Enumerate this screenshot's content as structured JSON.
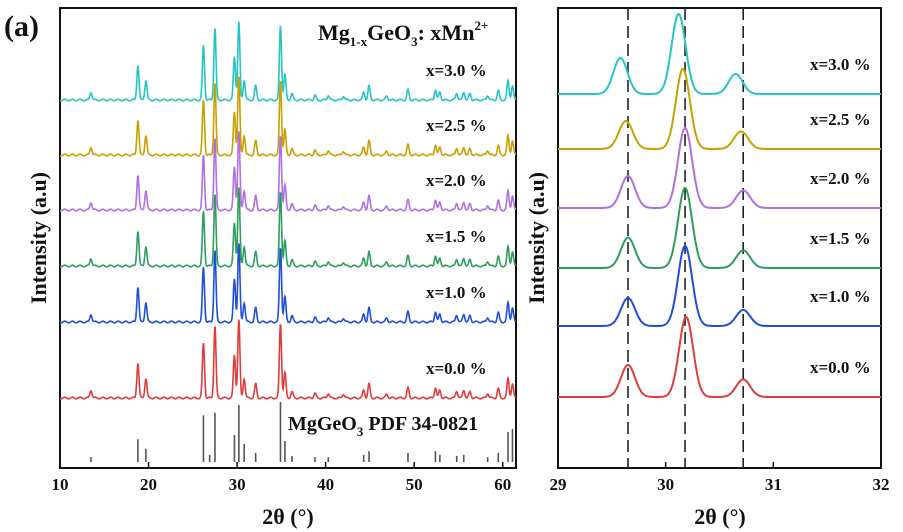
{
  "panel_label": "(a)",
  "chart_data": [
    {
      "type": "line",
      "title_main": "Mg",
      "title_sub1": "1-x",
      "title_mid": "GeO",
      "title_sub2": "3",
      "title_end": ": xMn",
      "title_sup": "2+",
      "xlabel": "2θ (°)",
      "ylabel": "Intensity (a.u)",
      "xlim": [
        10,
        61.5
      ],
      "xticks": [
        10,
        20,
        30,
        40,
        50,
        60
      ],
      "peaks": [
        {
          "x": 13.5,
          "h": 0.1
        },
        {
          "x": 18.8,
          "h": 0.45
        },
        {
          "x": 19.7,
          "h": 0.25
        },
        {
          "x": 26.2,
          "h": 0.7
        },
        {
          "x": 27.5,
          "h": 0.92
        },
        {
          "x": 29.7,
          "h": 0.55
        },
        {
          "x": 30.2,
          "h": 1.0
        },
        {
          "x": 30.8,
          "h": 0.25
        },
        {
          "x": 32.1,
          "h": 0.18
        },
        {
          "x": 34.9,
          "h": 0.95
        },
        {
          "x": 35.4,
          "h": 0.32
        },
        {
          "x": 36.2,
          "h": 0.08
        },
        {
          "x": 38.8,
          "h": 0.06
        },
        {
          "x": 40.3,
          "h": 0.06
        },
        {
          "x": 42.0,
          "h": 0.05
        },
        {
          "x": 44.3,
          "h": 0.1
        },
        {
          "x": 44.9,
          "h": 0.18
        },
        {
          "x": 46.9,
          "h": 0.05
        },
        {
          "x": 49.3,
          "h": 0.13
        },
        {
          "x": 52.4,
          "h": 0.13
        },
        {
          "x": 52.9,
          "h": 0.1
        },
        {
          "x": 54.8,
          "h": 0.09
        },
        {
          "x": 55.6,
          "h": 0.1
        },
        {
          "x": 56.3,
          "h": 0.08
        },
        {
          "x": 58.3,
          "h": 0.06
        },
        {
          "x": 59.5,
          "h": 0.12
        },
        {
          "x": 60.6,
          "h": 0.25
        },
        {
          "x": 61.1,
          "h": 0.18
        }
      ],
      "series": [
        {
          "name": "x=3.0 %",
          "color": "#28c4c4"
        },
        {
          "name": "x=2.5 %",
          "color": "#c8a000"
        },
        {
          "name": "x=2.0 %",
          "color": "#b070e0"
        },
        {
          "name": "x=1.5 %",
          "color": "#2e9e5e"
        },
        {
          "name": "x=1.0 %",
          "color": "#1f4fd8"
        },
        {
          "name": "x=0.0 %",
          "color": "#e03c3c"
        }
      ],
      "reference": {
        "name": "MgGeO",
        "name_sub": "3",
        "name_end": " PDF 34-0821",
        "color": "#555555",
        "lines": [
          {
            "x": 13.5,
            "h": 0.08
          },
          {
            "x": 18.8,
            "h": 0.38
          },
          {
            "x": 19.7,
            "h": 0.22
          },
          {
            "x": 26.2,
            "h": 0.78
          },
          {
            "x": 26.9,
            "h": 0.12
          },
          {
            "x": 27.5,
            "h": 0.82
          },
          {
            "x": 29.7,
            "h": 0.45
          },
          {
            "x": 30.2,
            "h": 0.95
          },
          {
            "x": 30.8,
            "h": 0.3
          },
          {
            "x": 32.1,
            "h": 0.15
          },
          {
            "x": 34.9,
            "h": 1.0
          },
          {
            "x": 35.4,
            "h": 0.35
          },
          {
            "x": 36.2,
            "h": 0.1
          },
          {
            "x": 38.8,
            "h": 0.08
          },
          {
            "x": 40.3,
            "h": 0.08
          },
          {
            "x": 44.3,
            "h": 0.12
          },
          {
            "x": 44.9,
            "h": 0.18
          },
          {
            "x": 49.3,
            "h": 0.15
          },
          {
            "x": 52.4,
            "h": 0.18
          },
          {
            "x": 52.9,
            "h": 0.12
          },
          {
            "x": 54.8,
            "h": 0.1
          },
          {
            "x": 55.6,
            "h": 0.12
          },
          {
            "x": 58.3,
            "h": 0.08
          },
          {
            "x": 59.5,
            "h": 0.15
          },
          {
            "x": 60.6,
            "h": 0.5
          },
          {
            "x": 61.1,
            "h": 0.55
          }
        ]
      }
    },
    {
      "type": "line",
      "xlabel": "2θ (°)",
      "ylabel": "Intensity (a.u)",
      "xlim": [
        29,
        32
      ],
      "xticks": [
        29,
        30,
        31,
        32
      ],
      "dashed_lines_x": [
        29.65,
        30.18,
        30.72
      ],
      "series": [
        {
          "name": "x=3.0 %",
          "color": "#28c4c4",
          "peaks": [
            {
              "x": 29.58,
              "h": 0.45
            },
            {
              "x": 30.12,
              "h": 1.0
            },
            {
              "x": 30.65,
              "h": 0.25
            }
          ]
        },
        {
          "name": "x=2.5 %",
          "color": "#c8a000",
          "peaks": [
            {
              "x": 29.63,
              "h": 0.35
            },
            {
              "x": 30.16,
              "h": 1.0
            },
            {
              "x": 30.7,
              "h": 0.22
            }
          ]
        },
        {
          "name": "x=2.0 %",
          "color": "#b070e0",
          "peaks": [
            {
              "x": 29.65,
              "h": 0.4
            },
            {
              "x": 30.18,
              "h": 1.0
            },
            {
              "x": 30.72,
              "h": 0.22
            }
          ]
        },
        {
          "name": "x=1.5 %",
          "color": "#2e9e5e",
          "peaks": [
            {
              "x": 29.65,
              "h": 0.38
            },
            {
              "x": 30.18,
              "h": 1.0
            },
            {
              "x": 30.72,
              "h": 0.22
            }
          ]
        },
        {
          "name": "x=1.0 %",
          "color": "#1f4fd8",
          "peaks": [
            {
              "x": 29.65,
              "h": 0.35
            },
            {
              "x": 30.18,
              "h": 1.0
            },
            {
              "x": 30.72,
              "h": 0.2
            }
          ]
        },
        {
          "name": "x=0.0 %",
          "color": "#e03c3c",
          "peaks": [
            {
              "x": 29.65,
              "h": 0.4
            },
            {
              "x": 30.19,
              "h": 1.0
            },
            {
              "x": 30.72,
              "h": 0.22
            }
          ]
        }
      ]
    }
  ]
}
